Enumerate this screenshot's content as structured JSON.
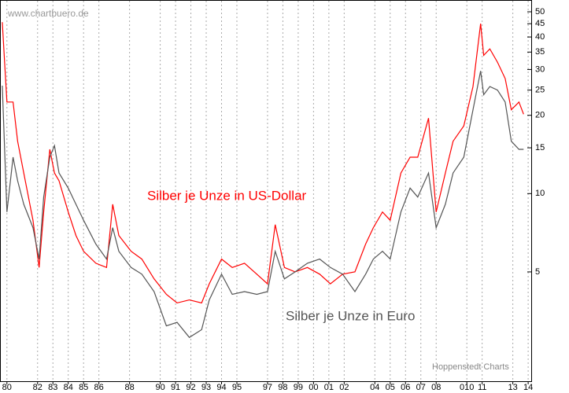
{
  "chart_data": {
    "type": "line",
    "watermark": "www.chartbuero.de",
    "source": "Hoppenstedt Charts",
    "x": [
      1979.7,
      1980.0,
      1980.4,
      1980.7,
      1981.1,
      1981.7,
      1982.1,
      1982.4,
      1982.8,
      1983.1,
      1983.4,
      1984.0,
      1984.5,
      1985.0,
      1985.8,
      1986.5,
      1986.9,
      1987.3,
      1988.1,
      1988.8,
      1989.6,
      1990.4,
      1991.1,
      1991.9,
      1992.7,
      1993.2,
      1994.0,
      1994.7,
      1995.5,
      1996.3,
      1997.0,
      1997.5,
      1998.1,
      1998.8,
      1999.6,
      2000.4,
      2001.1,
      2001.9,
      2002.7,
      2003.4,
      2003.9,
      2004.5,
      2005.0,
      2005.7,
      2006.3,
      2006.8,
      2007.5,
      2008.0,
      2008.6,
      2009.1,
      2009.8,
      2010.4,
      2010.9,
      2011.1,
      2011.5,
      2012.0,
      2012.5,
      2012.9,
      2013.4,
      2013.7
    ],
    "series": [
      {
        "name": "Silber je Unze in US-Dollar",
        "color": "#ff0000",
        "values": [
          45.6,
          22.5,
          22.5,
          15.9,
          12.0,
          7.9,
          5.2,
          8.5,
          14.8,
          12.0,
          11.2,
          8.5,
          6.9,
          6.0,
          5.4,
          5.2,
          9.1,
          6.9,
          6.0,
          5.6,
          4.7,
          4.1,
          3.8,
          3.9,
          3.8,
          4.5,
          5.6,
          5.2,
          5.4,
          4.9,
          4.5,
          7.6,
          5.2,
          5.0,
          5.2,
          4.9,
          4.5,
          4.9,
          5.0,
          6.4,
          7.4,
          8.5,
          7.9,
          12.0,
          13.8,
          13.8,
          19.5,
          8.5,
          12.0,
          15.9,
          18.2,
          25.8,
          45,
          34,
          36,
          32,
          27.7,
          21,
          22.5,
          20.2
        ]
      },
      {
        "name": "Silber je Unze in Euro",
        "color": "#555555",
        "values": [
          26,
          8.5,
          13.8,
          11.2,
          9.1,
          7.4,
          5.6,
          9.7,
          13.8,
          15.3,
          12,
          10.5,
          9.1,
          7.9,
          6.4,
          5.6,
          7.4,
          6.0,
          5.2,
          4.9,
          4.2,
          3.1,
          3.2,
          2.8,
          3.0,
          3.9,
          4.9,
          4.1,
          4.2,
          4.1,
          4.2,
          6.0,
          4.7,
          5.0,
          5.4,
          5.6,
          5.2,
          4.9,
          4.2,
          4.9,
          5.6,
          6.0,
          5.6,
          8.5,
          10.5,
          9.7,
          12,
          7.4,
          9.1,
          12,
          13.8,
          21,
          29.6,
          24,
          25.8,
          25,
          22.5,
          15.9,
          14.8,
          14.8
        ]
      }
    ],
    "xlim": [
      1979.6,
      2014.2
    ],
    "xticks": [
      {
        "value": 1980,
        "label": "80"
      },
      {
        "value": 1982,
        "label": "82"
      },
      {
        "value": 1983,
        "label": "83"
      },
      {
        "value": 1984,
        "label": "84"
      },
      {
        "value": 1985,
        "label": "85"
      },
      {
        "value": 1986,
        "label": "86"
      },
      {
        "value": 1988,
        "label": "88"
      },
      {
        "value": 1990,
        "label": "90"
      },
      {
        "value": 1991,
        "label": "91"
      },
      {
        "value": 1992,
        "label": "92"
      },
      {
        "value": 1993,
        "label": "93"
      },
      {
        "value": 1994,
        "label": "94"
      },
      {
        "value": 1995,
        "label": "95"
      },
      {
        "value": 1997,
        "label": "97"
      },
      {
        "value": 1998,
        "label": "98"
      },
      {
        "value": 1999,
        "label": "99"
      },
      {
        "value": 2000,
        "label": "00"
      },
      {
        "value": 2001,
        "label": "01"
      },
      {
        "value": 2002,
        "label": "02"
      },
      {
        "value": 2004,
        "label": "04"
      },
      {
        "value": 2005,
        "label": "05"
      },
      {
        "value": 2006,
        "label": "06"
      },
      {
        "value": 2007,
        "label": "07"
      },
      {
        "value": 2008,
        "label": "08"
      },
      {
        "value": 2010,
        "label": "010"
      },
      {
        "value": 2011,
        "label": "11"
      },
      {
        "value": 2013,
        "label": "13"
      },
      {
        "value": 2014,
        "label": "14"
      }
    ],
    "ylim": [
      1.9,
      55.5
    ],
    "yticks": [
      5,
      10,
      15,
      20,
      25,
      30,
      35,
      40,
      45,
      50
    ],
    "log_y": true,
    "grid": true
  }
}
